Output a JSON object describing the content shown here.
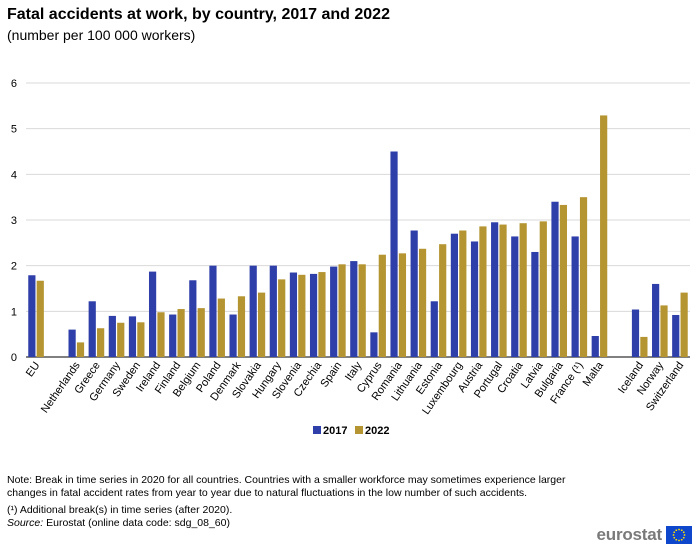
{
  "header": {
    "title": "Fatal accidents at work, by country, 2017 and 2022",
    "subtitle": "(number per 100 000 workers)"
  },
  "chart_data": {
    "type": "bar",
    "categories": [
      "EU",
      "",
      "Netherlands",
      "Greece",
      "Germany",
      "Sweden",
      "Ireland",
      "Finland",
      "Belgium",
      "Poland",
      "Denmark",
      "Slovakia",
      "Hungary",
      "Slovenia",
      "Czechia",
      "Spain",
      "Italy",
      "Cyprus",
      "Romania",
      "Lithuania",
      "Estonia",
      "Luxembourg",
      "Austria",
      "Portugal",
      "Croatia",
      "Latvia",
      "Bulgaria",
      "France (¹)",
      "Malta",
      "",
      "Iceland",
      "Norway",
      "Switzerland"
    ],
    "series": [
      {
        "name": "2017",
        "color": "#2f3fa9",
        "values": [
          1.79,
          null,
          0.6,
          1.22,
          0.9,
          0.89,
          1.87,
          0.93,
          1.68,
          2.0,
          0.93,
          2.0,
          2.0,
          1.85,
          1.82,
          1.98,
          2.1,
          0.54,
          4.5,
          2.77,
          1.22,
          2.7,
          2.53,
          2.95,
          2.64,
          2.3,
          3.4,
          2.64,
          0.46,
          null,
          1.04,
          1.6,
          0.92
        ]
      },
      {
        "name": "2022",
        "color": "#b49532",
        "values": [
          1.67,
          null,
          0.32,
          0.63,
          0.75,
          0.76,
          0.98,
          1.05,
          1.07,
          1.28,
          1.33,
          1.41,
          1.7,
          1.8,
          1.86,
          2.03,
          2.03,
          2.24,
          2.27,
          2.37,
          2.47,
          2.77,
          2.86,
          2.9,
          2.93,
          2.97,
          3.33,
          3.5,
          5.29,
          null,
          0.44,
          1.13,
          1.41
        ]
      }
    ],
    "ylim": [
      0,
      6
    ],
    "yticks": [
      0,
      1,
      2,
      3,
      4,
      5,
      6
    ],
    "grid": true,
    "legend_position": "bottom-center"
  },
  "notes": {
    "note": "Note: Break in time series in 2020 for all countries. Countries with a smaller workforce may sometimes experience larger changes in fatal accident rates from year to year due to natural fluctuations in the low number of such accidents.",
    "footnote": "(¹) Additional break(s) in time series (after 2020).",
    "source_label": "Source:",
    "source_text": " Eurostat (online data code: sdg_08_60)"
  },
  "branding": {
    "logo_text": "eurostat",
    "logo_icon": "eu-flag-icon"
  }
}
